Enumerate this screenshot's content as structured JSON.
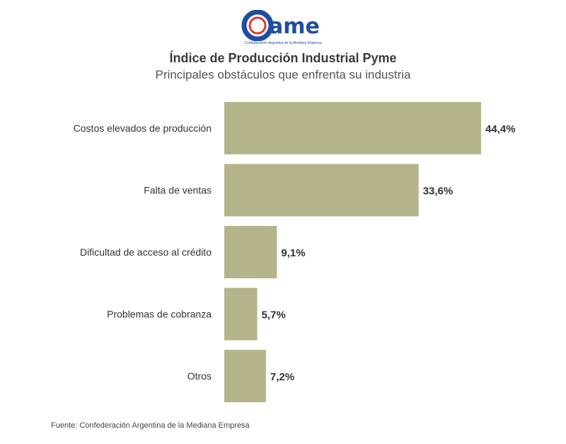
{
  "brand": {
    "logo_text": "came",
    "logo_subtitle": "Confederación Argentina de la Mediana Empresa",
    "colors": {
      "primary": "#1f4ea0",
      "accent": "#e03a2f"
    }
  },
  "chart_data": {
    "type": "bar",
    "orientation": "horizontal",
    "title": "Índice de Producción Industrial Pyme",
    "subtitle": "Principales obstáculos que enfrenta su industria",
    "categories": [
      "Costos elevados de producción",
      "Falta de ventas",
      "Dificultad de acceso al crédito",
      "Problemas de cobranza",
      "Otros"
    ],
    "values": [
      44.4,
      33.6,
      9.1,
      5.7,
      7.2
    ],
    "value_labels": [
      "44,4%",
      "33,6%",
      "9,1%",
      "5,7%",
      "7,2%"
    ],
    "xlim": [
      0,
      44.4
    ],
    "grid": false,
    "legend": "none",
    "bar_color": "#b6b48b"
  },
  "source": "Fuente: Confederación Argentina de la Mediana Empresa"
}
